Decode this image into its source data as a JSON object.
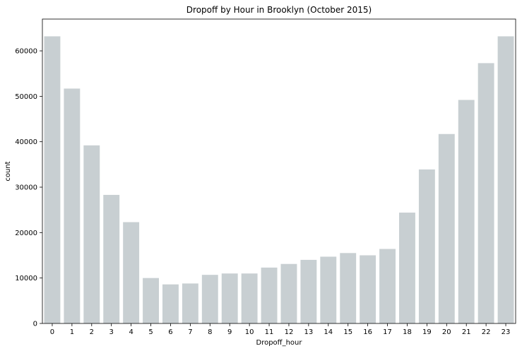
{
  "chart_data": {
    "type": "bar",
    "title": "Dropoff by Hour in Brooklyn (October 2015)",
    "xlabel": "Dropoff_hour",
    "ylabel": "count",
    "categories": [
      "0",
      "1",
      "2",
      "3",
      "4",
      "5",
      "6",
      "7",
      "8",
      "9",
      "10",
      "11",
      "12",
      "13",
      "14",
      "15",
      "16",
      "17",
      "18",
      "19",
      "20",
      "21",
      "22",
      "23"
    ],
    "values": [
      63200,
      51700,
      39200,
      28300,
      22300,
      10000,
      8600,
      8800,
      10700,
      11000,
      11000,
      12300,
      13100,
      14000,
      14700,
      15500,
      15000,
      16400,
      24400,
      33900,
      41700,
      49200,
      57300,
      63200
    ],
    "ylim": [
      0,
      67000
    ],
    "yticks": [
      0,
      10000,
      20000,
      30000,
      40000,
      50000,
      60000
    ],
    "ytick_labels": [
      "0",
      "10000",
      "20000",
      "30000",
      "40000",
      "50000",
      "60000"
    ],
    "grid": false,
    "bar_color": "#c8cfd2"
  }
}
